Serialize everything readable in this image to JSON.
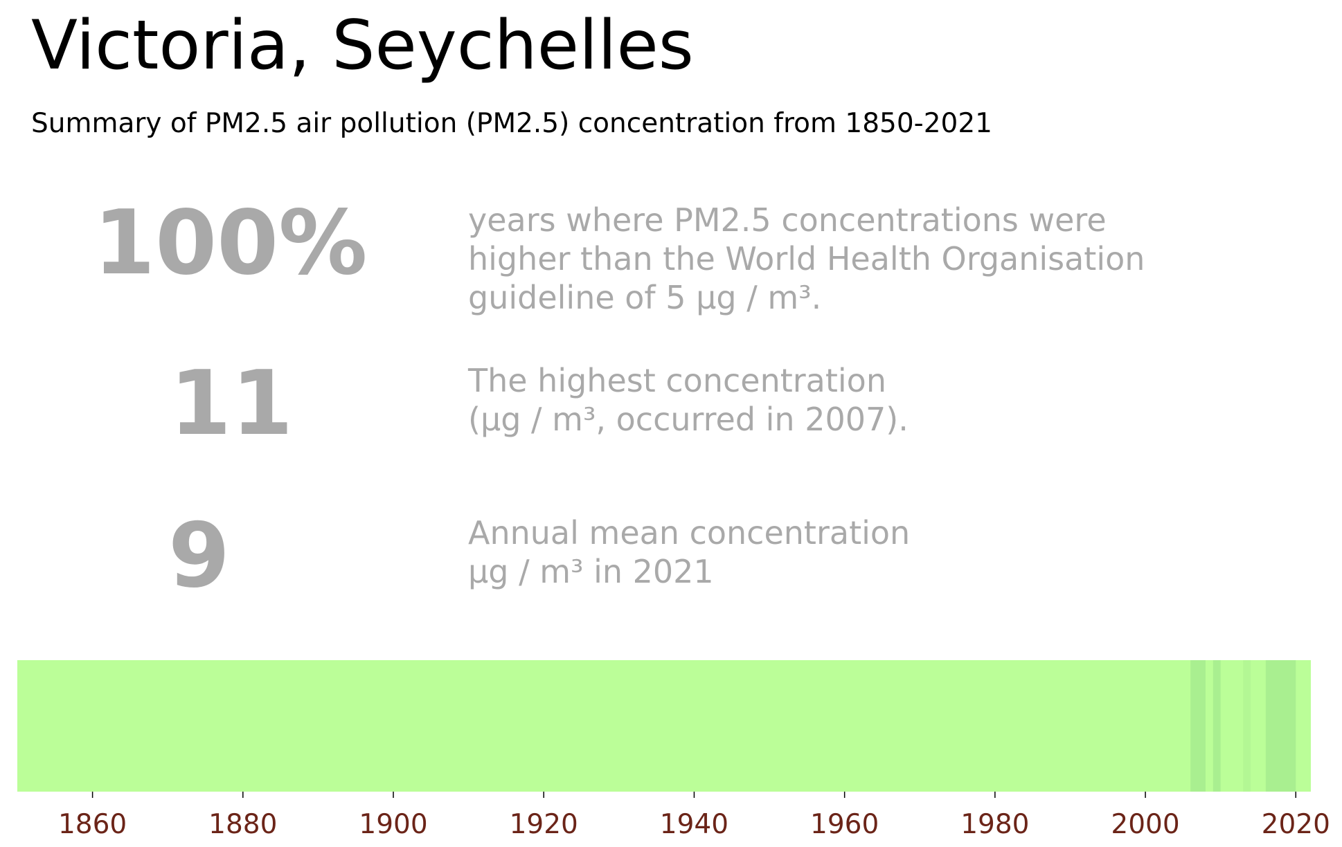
{
  "title": "Victoria, Seychelles",
  "subtitle": "Summary of PM2.5 air pollution (PM2.5) concentration from 1850-2021",
  "stats": [
    {
      "value": "100%",
      "lines": [
        "years where PM2.5 concentrations were",
        "higher than the World Health Organisation",
        "guideline of 5 µg / m³."
      ]
    },
    {
      "value": "11",
      "lines": [
        "The highest concentration",
        "(µg / m³, occurred in 2007)."
      ]
    },
    {
      "value": "9",
      "lines": [
        "Annual mean concentration",
        "µg / m³ in 2021"
      ]
    }
  ],
  "colors": {
    "text_muted": "#a9a9a9",
    "tick_label": "#6b2418",
    "stripe_base": "#bbfe98",
    "stripe_high": "#a9ef90",
    "stripe_mid": "#b3f794"
  },
  "chart_data": {
    "type": "heatmap",
    "xlim": [
      1850,
      2022
    ],
    "xticks": [
      1860,
      1880,
      1900,
      1920,
      1940,
      1960,
      1980,
      2000,
      2020
    ],
    "grid": false,
    "legend": "none",
    "highlight_bands": [
      {
        "start": 2006,
        "end": 2008,
        "level": "high"
      },
      {
        "start": 2009,
        "end": 2010,
        "level": "high"
      },
      {
        "start": 2013,
        "end": 2014,
        "level": "mid"
      },
      {
        "start": 2016,
        "end": 2020,
        "level": "high"
      }
    ]
  }
}
